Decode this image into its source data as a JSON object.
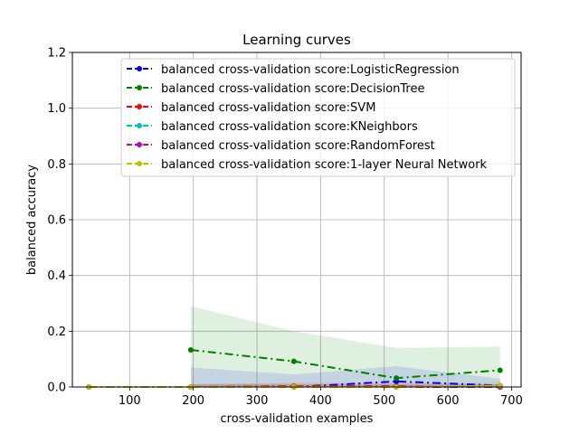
{
  "chart_data": {
    "type": "line",
    "title": "Learning curves",
    "xlabel": "cross-validation examples",
    "ylabel": "balanced accuracy",
    "xlim": [
      10,
      715
    ],
    "ylim": [
      0,
      1.2
    ],
    "xticks": [
      100,
      200,
      300,
      400,
      500,
      600,
      700
    ],
    "yticks": [
      0.0,
      0.2,
      0.4,
      0.6,
      0.8,
      1.0,
      1.2
    ],
    "grid": true,
    "legend_position": "top-right",
    "series": [
      {
        "name": "balanced cross-validation score:LogisticRegression",
        "color": "#0000ff",
        "x": [
          36,
          196,
          358,
          519,
          682
        ],
        "y": [
          0.0,
          0.0,
          0.0,
          0.02,
          0.005
        ],
        "band_upper": [
          0.0,
          0.07,
          0.045,
          0.075,
          0.03
        ],
        "band_lower": [
          0.0,
          0.0,
          0.0,
          0.0,
          0.0
        ]
      },
      {
        "name": "balanced cross-validation score:DecisionTree",
        "color": "#008000",
        "x": [
          196,
          358,
          519,
          682
        ],
        "y": [
          0.133,
          0.092,
          0.032,
          0.06
        ],
        "band_upper": [
          0.29,
          0.2,
          0.14,
          0.145
        ],
        "band_lower": [
          0.0,
          0.0,
          0.0,
          0.0
        ]
      },
      {
        "name": "balanced cross-validation score:SVM",
        "color": "#ff0000",
        "x": [
          36,
          196,
          358,
          519,
          682
        ],
        "y": [
          0.0,
          0.0,
          0.003,
          0.003,
          0.0
        ],
        "band_upper": [
          0.0,
          0.01,
          0.015,
          0.015,
          0.01
        ],
        "band_lower": [
          0.0,
          0.0,
          0.0,
          0.0,
          0.0
        ]
      },
      {
        "name": "balanced cross-validation score:KNeighbors",
        "color": "#00bfbf",
        "x": [
          36,
          196,
          358,
          519,
          682
        ],
        "y": [
          0.0,
          0.0,
          0.0,
          0.0,
          0.0
        ],
        "band_upper": [
          0.0,
          0.01,
          0.01,
          0.01,
          0.01
        ],
        "band_lower": [
          0.0,
          0.0,
          0.0,
          0.0,
          0.0
        ]
      },
      {
        "name": "balanced cross-validation score:RandomForest",
        "color": "#bf00bf",
        "x": [
          36,
          196,
          358,
          519,
          682
        ],
        "y": [
          0.0,
          0.0,
          0.0,
          0.0,
          0.0
        ],
        "band_upper": [
          0.0,
          0.01,
          0.01,
          0.01,
          0.01
        ],
        "band_lower": [
          0.0,
          0.0,
          0.0,
          0.0,
          0.0
        ]
      },
      {
        "name": "balanced cross-validation score:1-layer Neural Network",
        "color": "#bfbf00",
        "x": [
          36,
          196,
          358,
          519,
          682
        ],
        "y": [
          0.0,
          0.0,
          0.0,
          0.0,
          0.005
        ],
        "band_upper": [
          0.0,
          0.01,
          0.01,
          0.01,
          0.02
        ],
        "band_lower": [
          0.0,
          0.0,
          0.0,
          0.0,
          0.0
        ]
      }
    ]
  }
}
